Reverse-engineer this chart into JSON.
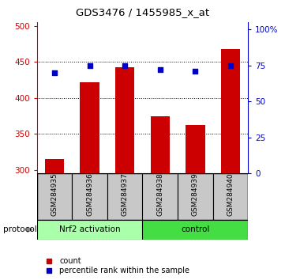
{
  "title": "GDS3476 / 1455985_x_at",
  "samples": [
    "GSM284935",
    "GSM284936",
    "GSM284937",
    "GSM284938",
    "GSM284939",
    "GSM284940"
  ],
  "counts": [
    315,
    422,
    443,
    375,
    362,
    468
  ],
  "percentile_ranks": [
    70,
    75,
    75,
    72,
    71,
    75
  ],
  "group_nrf2_label": "Nrf2 activation",
  "group_ctrl_label": "control",
  "group_nrf2_color": "#AAFFAA",
  "group_ctrl_color": "#44DD44",
  "ylim_left": [
    295,
    505
  ],
  "yticks_left": [
    300,
    350,
    400,
    450,
    500
  ],
  "ylim_right": [
    0,
    105
  ],
  "yticks_right": [
    0,
    25,
    50,
    75,
    100
  ],
  "ytick_labels_right": [
    "0",
    "25",
    "50",
    "75",
    "100%"
  ],
  "bar_color": "#CC0000",
  "scatter_color": "#0000CC",
  "bar_width": 0.55,
  "left_axis_color": "#CC0000",
  "right_axis_color": "#0000CC",
  "protocol_label": "protocol",
  "label_count": "count",
  "label_percentile": "percentile rank within the sample",
  "gridlines_at": [
    350,
    400,
    450
  ],
  "bar_bottom": 295
}
